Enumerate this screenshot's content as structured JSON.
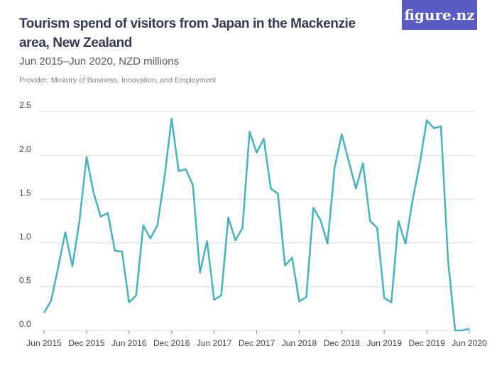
{
  "logo": "figure.nz",
  "chart_data": {
    "type": "line",
    "title": "Tourism spend of visitors from Japan in the Mackenzie area, New Zealand",
    "subtitle": "Jun 2015–Jun 2020, NZD millions",
    "provider": "Provider: Ministry of Business, Innovation, and Employment",
    "categories": [
      "Jun 2015",
      null,
      null,
      null,
      null,
      null,
      "Dec 2015",
      null,
      null,
      null,
      null,
      null,
      "Jun 2016",
      null,
      null,
      null,
      null,
      null,
      "Dec 2016",
      null,
      null,
      null,
      null,
      null,
      "Jun 2017",
      null,
      null,
      null,
      null,
      null,
      "Dec 2017",
      null,
      null,
      null,
      null,
      null,
      "Jun 2018",
      null,
      null,
      null,
      null,
      null,
      "Dec 2018",
      null,
      null,
      null,
      null,
      null,
      "Jun 2019",
      null,
      null,
      null,
      null,
      null,
      "Dec 2019",
      null,
      null,
      null,
      null,
      null,
      "Jun 2020"
    ],
    "values": [
      0.2,
      0.34,
      0.72,
      1.12,
      0.73,
      1.25,
      1.98,
      1.57,
      1.3,
      1.34,
      0.91,
      0.9,
      0.32,
      0.4,
      1.2,
      1.05,
      1.2,
      1.75,
      2.42,
      1.82,
      1.84,
      1.66,
      0.66,
      1.02,
      0.35,
      0.4,
      1.29,
      1.03,
      1.17,
      2.27,
      2.03,
      2.19,
      1.62,
      1.56,
      0.74,
      0.83,
      0.33,
      0.38,
      1.4,
      1.26,
      0.99,
      1.86,
      2.24,
      1.93,
      1.62,
      1.91,
      1.25,
      1.17,
      0.37,
      0.32,
      1.25,
      0.99,
      1.49,
      1.9,
      2.4,
      2.31,
      2.33,
      0.8,
      0.0,
      0.0,
      0.02
    ],
    "color": "#45b3bd",
    "ylim": [
      0,
      2.5
    ],
    "yticks": [
      {
        "value": 0,
        "label": "0.0"
      },
      0.5,
      {
        "value": 1,
        "label": "1.0"
      },
      1.5,
      {
        "value": 2,
        "label": "2.0"
      },
      2.5
    ],
    "grid": true
  }
}
